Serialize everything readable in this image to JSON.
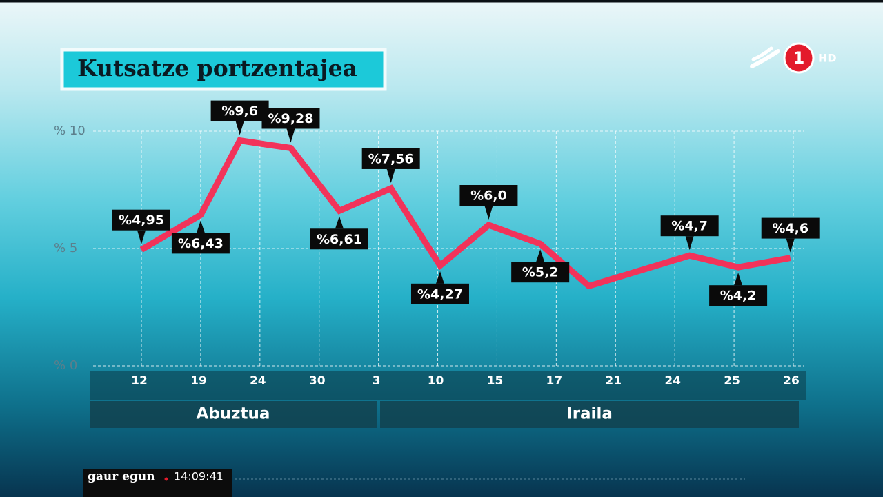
{
  "chart_data": {
    "type": "line",
    "title": "Kutsatze portzentajea",
    "x": [
      0,
      1,
      1.66,
      2.52,
      3.34,
      4.21,
      5.04,
      5.86,
      6.73,
      7.55,
      9.25,
      10.07,
      10.95
    ],
    "xlim": [
      0,
      11
    ],
    "xticks": [
      {
        "value": 0,
        "label": "12"
      },
      {
        "value": 1,
        "label": "19"
      },
      {
        "value": 2,
        "label": "24"
      },
      {
        "value": 3,
        "label": "30"
      },
      {
        "value": 4,
        "label": "3"
      },
      {
        "value": 5,
        "label": "10"
      },
      {
        "value": 6,
        "label": "15"
      },
      {
        "value": 7,
        "label": "17"
      },
      {
        "value": 8,
        "label": "21"
      },
      {
        "value": 9,
        "label": "24"
      },
      {
        "value": 10,
        "label": "25"
      },
      {
        "value": 11,
        "label": "26"
      }
    ],
    "groups": [
      "Abuztua",
      "Iraila"
    ],
    "ylim": [
      0,
      10
    ],
    "yticks": [
      {
        "value": 0,
        "label": "% 0"
      },
      {
        "value": 5,
        "label": "% 5"
      },
      {
        "value": 10,
        "label": "% 10"
      }
    ],
    "grid": true,
    "series": [
      {
        "color": "#f2335a",
        "values": [
          4.95,
          6.43,
          9.6,
          9.28,
          6.61,
          7.56,
          4.27,
          6.0,
          5.2,
          3.4,
          4.7,
          4.2,
          4.6
        ],
        "value_labels": [
          "%4,95",
          "%6,43",
          "%9,6",
          "%9,28",
          "%6,61",
          "%7,56",
          "%4,27",
          "%6,0",
          "%5,2",
          null,
          "%4,7",
          "%4,2",
          "%4,6"
        ]
      }
    ]
  },
  "channel": {
    "number": "1",
    "tag": "HD"
  },
  "ticker": {
    "program": "gaur egun",
    "time": "14:09:41"
  }
}
